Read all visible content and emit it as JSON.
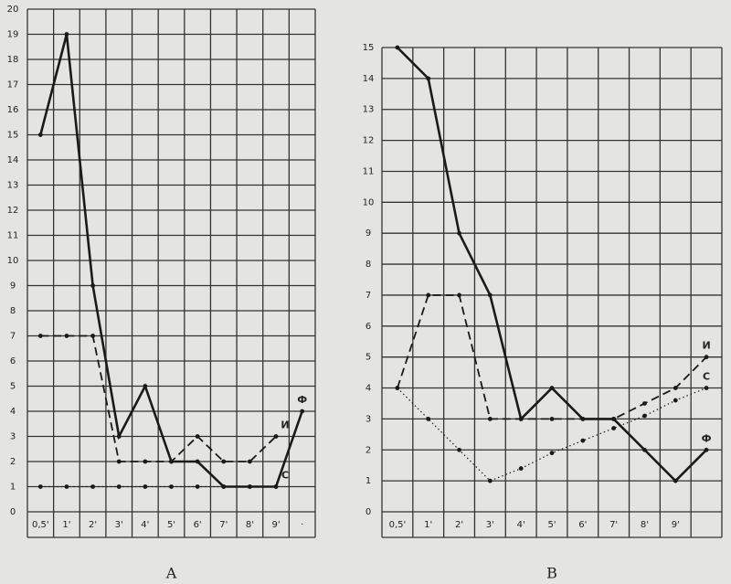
{
  "chart_data": [
    {
      "type": "line",
      "title": "А",
      "categories": [
        "0,5'",
        "1'",
        "2'",
        "3'",
        "4'",
        "5'",
        "6'",
        "7'",
        "8'",
        "9'",
        "·"
      ],
      "series": [
        {
          "name": "Ф",
          "color": "#1a1a1a",
          "line_style": "solid",
          "values": [
            15,
            19,
            9,
            3,
            5,
            2,
            2,
            1,
            1,
            1,
            4
          ]
        },
        {
          "name": "И",
          "color": "#1a1a1a",
          "line_style": "dashed",
          "values": [
            7,
            7,
            7,
            2,
            2,
            2,
            3,
            2,
            2,
            3,
            null
          ]
        },
        {
          "name": "С",
          "color": "#1a1a1a",
          "line_style": "dotted",
          "values": [
            1,
            1,
            1,
            1,
            1,
            1,
            1,
            1,
            1,
            1,
            null
          ]
        }
      ],
      "ylim": [
        0,
        20
      ],
      "yticks": [
        0,
        1,
        2,
        3,
        4,
        5,
        6,
        7,
        8,
        9,
        10,
        11,
        12,
        13,
        14,
        15,
        16,
        17,
        18,
        19,
        20
      ],
      "grid": true
    },
    {
      "type": "line",
      "title": "В",
      "categories": [
        "0,5'",
        "1'",
        "2'",
        "3'",
        "4'",
        "5'",
        "6'",
        "7'",
        "8'",
        "9'",
        null
      ],
      "series": [
        {
          "name": "Ф",
          "color": "#1a1a1a",
          "line_style": "solid",
          "values": [
            15,
            14,
            9,
            7,
            3,
            4,
            3,
            3,
            2,
            1,
            2
          ]
        },
        {
          "name": "И",
          "color": "#1a1a1a",
          "line_style": "dashed",
          "values": [
            4,
            7,
            7,
            3,
            3,
            3,
            3,
            3,
            3.5,
            4,
            5
          ]
        },
        {
          "name": "С",
          "color": "#1a1a1a",
          "line_style": "dotted",
          "values": [
            4,
            3,
            2,
            1,
            1.4,
            1.9,
            2.3,
            2.7,
            3.1,
            3.6,
            4
          ]
        }
      ],
      "ylim": [
        0,
        15
      ],
      "yticks": [
        0,
        1,
        2,
        3,
        4,
        5,
        6,
        7,
        8,
        9,
        10,
        11,
        12,
        13,
        14,
        15
      ],
      "grid": true
    }
  ]
}
